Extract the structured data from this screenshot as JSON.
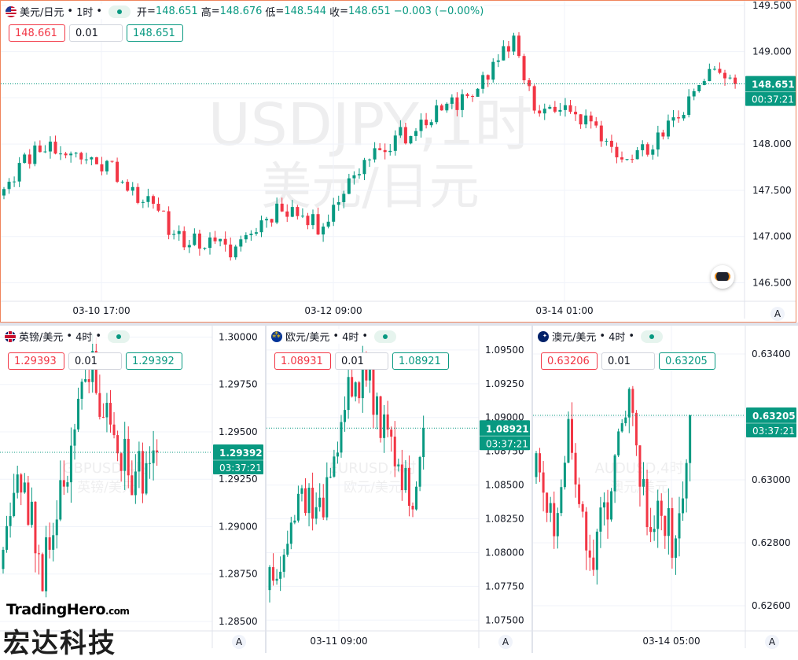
{
  "colors": {
    "up": "#089981",
    "down": "#f23645",
    "grid": "#f0f3fa",
    "axis_text": "#131722",
    "frame": "#f0845c"
  },
  "brand": {
    "name": "TradingHero",
    "tld": ".com",
    "cn": "宏达科技"
  },
  "chart_data": [
    {
      "type": "candlestick",
      "id": "main",
      "symbol": "美元/日元",
      "interval": "1时",
      "watermark_line1": "USDJPY,1时",
      "watermark_line2": "美元/日元",
      "ohlc": {
        "open_label": "开",
        "open": "148.651",
        "high_label": "高",
        "high": "148.676",
        "low_label": "低",
        "low": "148.544",
        "close_label": "收",
        "close": "148.651",
        "change": "−0.003 (−0.00%)"
      },
      "sell_price": "148.661",
      "quantity": "0.01",
      "buy_price": "148.651",
      "last_price": "148.651",
      "countdown": "00:37:21",
      "y_ticks": [
        "149.500",
        "149.000",
        "148.500",
        "148.000",
        "147.500",
        "147.000",
        "146.500"
      ],
      "y_tick_values": [
        149.5,
        149.0,
        148.5,
        148.0,
        147.5,
        147.0,
        146.5
      ],
      "x_labels": [
        "03-10 17:00",
        "03-12 09:00",
        "03-14 01:00"
      ],
      "ylim": [
        146.3,
        149.55
      ],
      "seed": 11,
      "count": 143,
      "start": 147.5,
      "end": 148.651,
      "anchors": [
        [
          0,
          147.5
        ],
        [
          8,
          148.0
        ],
        [
          22,
          147.75
        ],
        [
          35,
          147.0
        ],
        [
          45,
          146.85
        ],
        [
          55,
          147.35
        ],
        [
          62,
          147.1
        ],
        [
          72,
          147.9
        ],
        [
          82,
          148.2
        ],
        [
          95,
          148.7
        ],
        [
          100,
          149.15
        ],
        [
          104,
          148.4
        ],
        [
          113,
          148.3
        ],
        [
          120,
          147.95
        ],
        [
          126,
          147.9
        ],
        [
          132,
          148.3
        ],
        [
          138,
          148.85
        ],
        [
          143,
          148.651
        ]
      ],
      "vol": 0.09
    },
    {
      "type": "candlestick",
      "id": "gbp",
      "symbol": "英镑/美元",
      "interval": "4时",
      "watermark_line1": "GBPUSD,4时",
      "watermark_line2": "英镑/美元",
      "sell_price": "1.29393",
      "quantity": "0.01",
      "buy_price": "1.29392",
      "last_price": "1.29392",
      "countdown": "03:37:21",
      "y_ticks": [
        "1.30000",
        "1.29750",
        "1.29500",
        "1.29250",
        "1.29000",
        "1.28750",
        "1.28500"
      ],
      "y_tick_values": [
        1.3,
        1.2975,
        1.295,
        1.2925,
        1.29,
        1.2875,
        1.285
      ],
      "x_labels": [],
      "ylim": [
        1.2845,
        1.3006
      ],
      "seed": 23,
      "count": 44,
      "anchors": [
        [
          0,
          1.2885
        ],
        [
          6,
          1.2925
        ],
        [
          12,
          1.2878
        ],
        [
          20,
          1.2945
        ],
        [
          26,
          1.2985
        ],
        [
          30,
          1.2955
        ],
        [
          38,
          1.2925
        ],
        [
          44,
          1.29392
        ]
      ],
      "vol": 0.0012
    },
    {
      "type": "candlestick",
      "id": "eur",
      "symbol": "欧元/美元",
      "interval": "4时",
      "watermark_line1": "EURUSD,4时",
      "watermark_line2": "欧元/美元",
      "sell_price": "1.08931",
      "quantity": "0.01",
      "buy_price": "1.08921",
      "last_price": "1.08921",
      "countdown": "03:37:21",
      "y_ticks": [
        "1.09500",
        "1.09250",
        "1.09000",
        "1.08750",
        "1.08500",
        "1.08250",
        "1.08000",
        "1.07750",
        "1.07500"
      ],
      "y_tick_values": [
        1.095,
        1.0925,
        1.09,
        1.0875,
        1.085,
        1.0825,
        1.08,
        1.0775,
        1.075
      ],
      "x_labels": [
        "03-11 09:00"
      ],
      "ylim": [
        1.0742,
        1.0968
      ],
      "seed": 37,
      "count": 44,
      "anchors": [
        [
          0,
          1.078
        ],
        [
          5,
          1.0805
        ],
        [
          10,
          1.0845
        ],
        [
          16,
          1.083
        ],
        [
          22,
          1.0915
        ],
        [
          28,
          1.093
        ],
        [
          34,
          1.0885
        ],
        [
          40,
          1.084
        ],
        [
          42,
          1.0855
        ],
        [
          44,
          1.08921
        ]
      ],
      "vol": 0.0013
    },
    {
      "type": "candlestick",
      "id": "aud",
      "symbol": "澳元/美元",
      "interval": "4时",
      "watermark_line1": "AUDUSD,4时",
      "watermark_line2": "澳元/美元",
      "sell_price": "0.63206",
      "quantity": "0.01",
      "buy_price": "0.63205",
      "last_price": "0.63205",
      "countdown": "03:37:21",
      "y_ticks": [
        "0.63400",
        "0.63200",
        "0.63000",
        "0.62800",
        "0.62600"
      ],
      "y_tick_values": [
        0.634,
        0.632,
        0.63,
        0.628,
        0.626
      ],
      "x_labels": [
        "03-14 05:00"
      ],
      "ylim": [
        0.6252,
        0.6349
      ],
      "seed": 51,
      "count": 44,
      "anchors": [
        [
          0,
          0.6305
        ],
        [
          6,
          0.6285
        ],
        [
          10,
          0.6312
        ],
        [
          16,
          0.6275
        ],
        [
          22,
          0.6295
        ],
        [
          27,
          0.6325
        ],
        [
          32,
          0.6285
        ],
        [
          36,
          0.6292
        ],
        [
          40,
          0.628
        ],
        [
          44,
          0.63205
        ]
      ],
      "vol": 0.0007
    }
  ]
}
